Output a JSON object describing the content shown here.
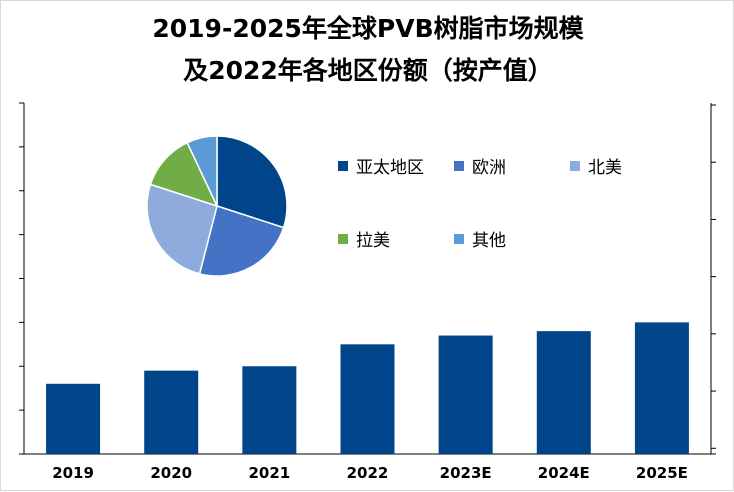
{
  "title_line1": "2019-2025年全球PVB树脂市场规模",
  "title_line2": "及2022年各地区份额（按产值）",
  "chart_data": [
    {
      "type": "bar",
      "categories": [
        "2019",
        "2020",
        "2021",
        "2022",
        "2023E",
        "2024E",
        "2025E"
      ],
      "values": [
        1.6,
        1.9,
        2.0,
        2.5,
        2.7,
        2.8,
        3.0
      ],
      "ylim": [
        0,
        8
      ],
      "y_tick_labels_shown": false,
      "grid": false,
      "color": "#00448a"
    },
    {
      "type": "pie",
      "labels": [
        "亚太地区",
        "欧洲",
        "北美",
        "拉美",
        "其他"
      ],
      "values": [
        30,
        24,
        26,
        13,
        7
      ],
      "colors": [
        "#00448a",
        "#4472c4",
        "#8faadc",
        "#70ad47",
        "#5b9bd5"
      ],
      "legend": "right"
    }
  ]
}
